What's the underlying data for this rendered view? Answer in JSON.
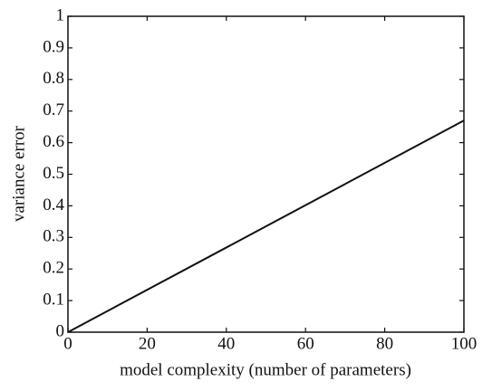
{
  "chart_data": {
    "type": "line",
    "x_label": "model complexity (number of parameters)",
    "y_label": "variance error",
    "x": [
      0,
      100
    ],
    "values": [
      0,
      0.67
    ],
    "color": "#111111",
    "xlim": [
      0,
      100
    ],
    "xticks": [
      0,
      20,
      40,
      60,
      80,
      100
    ],
    "ylim": [
      0,
      1
    ],
    "yticks": [
      0,
      0.1,
      0.2,
      0.3,
      0.4,
      0.5,
      0.6,
      0.7,
      0.8,
      0.9,
      1
    ]
  }
}
